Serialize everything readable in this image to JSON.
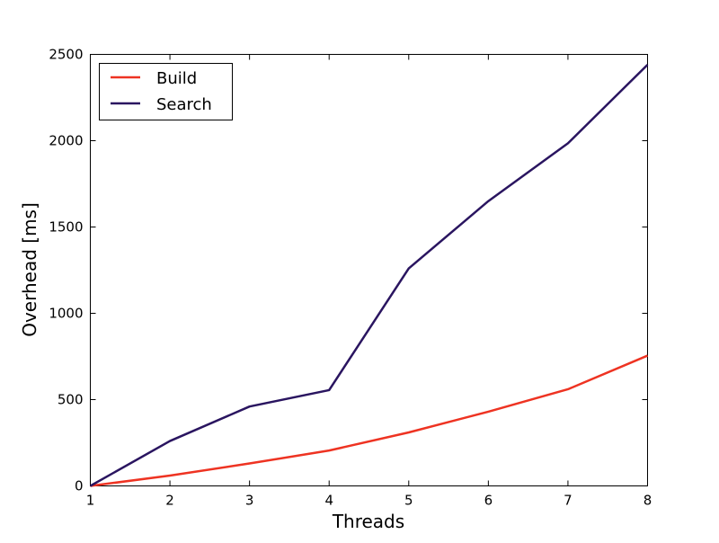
{
  "chart_data": {
    "type": "line",
    "title": "",
    "xlabel": "Threads",
    "ylabel": "Overhead [ms]",
    "x": [
      1,
      2,
      3,
      4,
      5,
      6,
      7,
      8
    ],
    "xlim": [
      1,
      8
    ],
    "ylim": [
      0,
      2500
    ],
    "xticks": [
      "1",
      "2",
      "3",
      "4",
      "5",
      "6",
      "7",
      "8"
    ],
    "yticks": [
      "0",
      "500",
      "1000",
      "1500",
      "2000",
      "2500"
    ],
    "grid": false,
    "legend_position": "top-left",
    "series": [
      {
        "name": "Build",
        "color": "#ee3322",
        "values": [
          0,
          60,
          130,
          205,
          310,
          430,
          560,
          755
        ]
      },
      {
        "name": "Search",
        "color": "#2a1560",
        "values": [
          0,
          260,
          460,
          555,
          1260,
          1650,
          1985,
          2440
        ]
      }
    ]
  }
}
